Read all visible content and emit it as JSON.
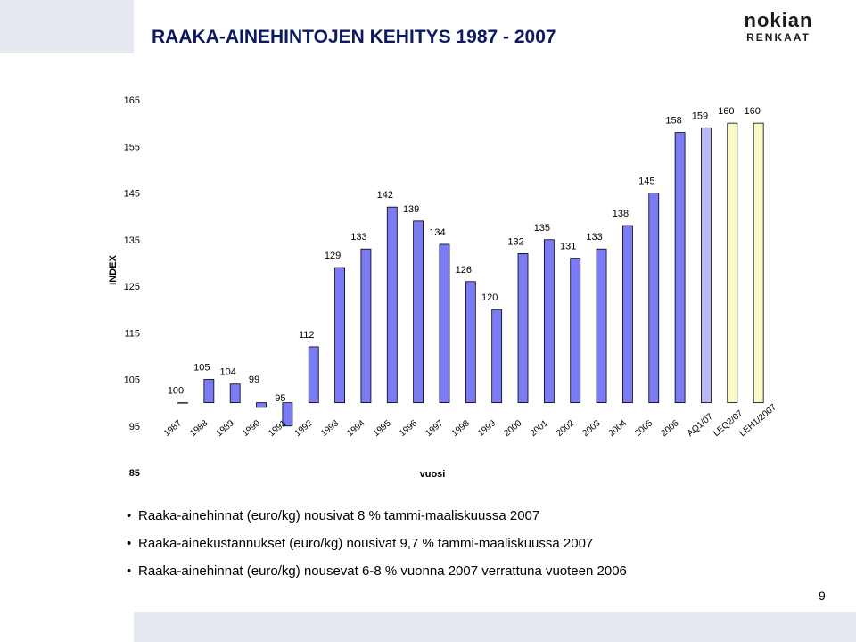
{
  "slide": {
    "title": "RAAKA-AINEHINTOJEN KEHITYS 1987 - 2007",
    "logo_brand": "nokian",
    "logo_sub": "RENKAAT",
    "page_number": "9",
    "accent_color": "#0b1a63"
  },
  "chart_data": {
    "type": "bar",
    "title": "",
    "xlabel": "vuosi",
    "ylabel": "INDEX",
    "ylim": [
      85,
      165
    ],
    "yticks": [
      85,
      95,
      105,
      115,
      125,
      135,
      145,
      155,
      165
    ],
    "grid": false,
    "categories": [
      "1987",
      "1988",
      "1989",
      "1990",
      "1991",
      "1992",
      "1993",
      "1994",
      "1995",
      "1996",
      "1997",
      "1998",
      "1999",
      "2000",
      "2001",
      "2002",
      "2003",
      "2004",
      "2005",
      "2006",
      "AQ1/07",
      "LEQ2/07",
      "LEH1/2007"
    ],
    "values": [
      100,
      105,
      104,
      99,
      95,
      112,
      129,
      133,
      142,
      139,
      134,
      126,
      120,
      132,
      135,
      131,
      133,
      138,
      145,
      158,
      159,
      160,
      160
    ],
    "baseline": 100,
    "colors": {
      "main": "#7b7bf5",
      "aq": "#b8b8f5",
      "le": "#fafac8"
    }
  },
  "bullets": [
    "Raaka-ainehinnat (euro/kg) nousivat 8 % tammi-maaliskuussa 2007",
    "Raaka-ainekustannukset (euro/kg) nousivat 9,7 % tammi-maaliskuussa 2007",
    "Raaka-ainehinnat (euro/kg) nousevat 6-8 % vuonna 2007 verrattuna vuoteen 2006"
  ]
}
